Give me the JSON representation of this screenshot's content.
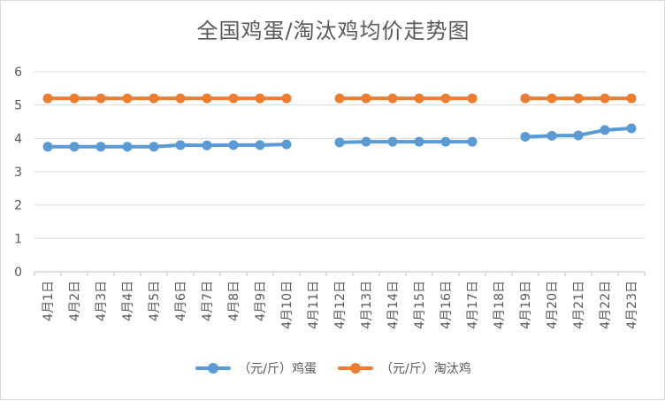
{
  "chart_data": {
    "type": "line",
    "title": "全国鸡蛋/淘汰鸡均价走势图",
    "xlabel": "",
    "ylabel": "",
    "categories": [
      "4月1日",
      "4月2日",
      "4月3日",
      "4月4日",
      "4月5日",
      "4月6日",
      "4月7日",
      "4月8日",
      "4月9日",
      "4月10日",
      "4月11日",
      "4月12日",
      "4月13日",
      "4月14日",
      "4月15日",
      "4月16日",
      "4月17日",
      "4月18日",
      "4月19日",
      "4月20日",
      "4月21日",
      "4月22日",
      "4月23日"
    ],
    "ylim": [
      0,
      6
    ],
    "yticks": [
      "0",
      "1",
      "2",
      "3",
      "4",
      "5",
      "6"
    ],
    "grid": true,
    "legend": "bottom",
    "series": [
      {
        "name": "（元/斤）鸡蛋",
        "color": "#5b9bd5",
        "values": [
          3.75,
          3.75,
          3.75,
          3.75,
          3.75,
          3.8,
          3.79,
          3.8,
          3.8,
          3.82,
          null,
          3.88,
          3.9,
          3.9,
          3.9,
          3.9,
          3.9,
          null,
          4.05,
          4.08,
          4.09,
          4.25,
          4.3
        ]
      },
      {
        "name": "（元/斤）淘汰鸡",
        "color": "#ed7d31",
        "values": [
          5.2,
          5.2,
          5.2,
          5.2,
          5.2,
          5.2,
          5.2,
          5.2,
          5.2,
          5.2,
          null,
          5.2,
          5.2,
          5.2,
          5.2,
          5.2,
          5.2,
          null,
          5.2,
          5.2,
          5.2,
          5.2,
          5.2
        ]
      }
    ]
  }
}
